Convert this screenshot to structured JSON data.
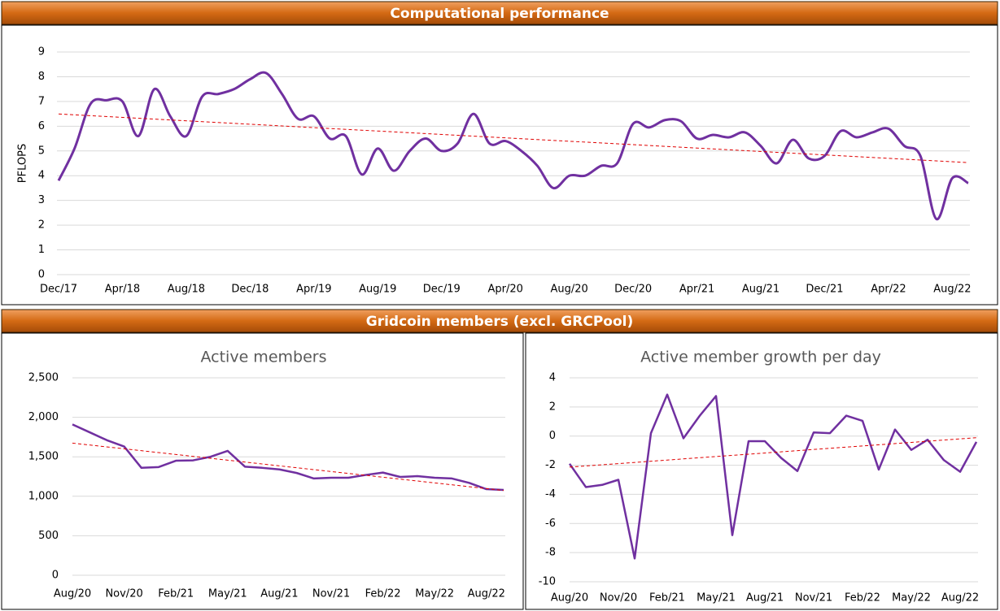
{
  "sections": [
    {
      "title": "Computational performance"
    },
    {
      "title": "Gridcoin members (excl. GRCPool)"
    }
  ],
  "chart_data": [
    {
      "type": "line",
      "smooth": true,
      "ylabel": "PFLOPS",
      "color": "#7030a0",
      "trendline": true,
      "trend_color": "#e00000",
      "grid": true,
      "categories": [
        "Dec/17",
        null,
        null,
        null,
        "Apr/18",
        null,
        null,
        null,
        "Aug/18",
        null,
        null,
        null,
        "Dec/18",
        null,
        null,
        null,
        "Apr/19",
        null,
        null,
        null,
        "Aug/19",
        null,
        null,
        null,
        "Dec/19",
        null,
        null,
        null,
        "Apr/20",
        null,
        null,
        null,
        "Aug/20",
        null,
        null,
        null,
        "Dec/20",
        null,
        null,
        null,
        "Apr/21",
        null,
        null,
        null,
        "Aug/21",
        null,
        null,
        null,
        "Dec/21",
        null,
        null,
        null,
        "Apr/22",
        null,
        null,
        null,
        "Aug/22",
        null
      ],
      "values": [
        3.8,
        5.1,
        6.9,
        7.05,
        7.0,
        5.6,
        7.5,
        6.4,
        5.6,
        7.2,
        7.3,
        7.5,
        7.9,
        8.15,
        7.3,
        6.3,
        6.4,
        5.5,
        5.6,
        4.05,
        5.1,
        4.2,
        5.0,
        5.5,
        5.0,
        5.3,
        6.5,
        5.3,
        5.4,
        5.0,
        4.4,
        3.5,
        4.0,
        4.0,
        4.4,
        4.5,
        6.1,
        5.95,
        6.25,
        6.2,
        5.5,
        5.65,
        5.55,
        5.75,
        5.2,
        4.5,
        5.45,
        4.7,
        4.8,
        5.8,
        5.55,
        5.75,
        5.9,
        5.2,
        4.8,
        2.25,
        3.9,
        3.7
      ],
      "ylim": [
        0,
        9
      ],
      "yticks": [
        0,
        1,
        2,
        3,
        4,
        5,
        6,
        7,
        8,
        9
      ]
    },
    {
      "type": "line",
      "smooth": false,
      "title": "Active members",
      "color": "#7030a0",
      "trendline": true,
      "trend_color": "#e00000",
      "grid": true,
      "categories": [
        "Aug/20",
        null,
        null,
        "Nov/20",
        null,
        null,
        "Feb/21",
        null,
        null,
        "May/21",
        null,
        null,
        "Aug/21",
        null,
        null,
        "Nov/21",
        null,
        null,
        "Feb/22",
        null,
        null,
        "May/22",
        null,
        null,
        "Aug/22",
        null
      ],
      "values": [
        1910,
        1810,
        1710,
        1630,
        1360,
        1370,
        1450,
        1455,
        1500,
        1575,
        1375,
        1360,
        1340,
        1295,
        1225,
        1235,
        1235,
        1270,
        1300,
        1245,
        1255,
        1235,
        1225,
        1170,
        1090,
        1080
      ],
      "ylim": [
        0,
        2500
      ],
      "yticks": [
        0,
        500,
        {
          "value": 1000,
          "label": "1,000"
        },
        {
          "value": 1500,
          "label": "1,500"
        },
        {
          "value": 2000,
          "label": "2,000"
        },
        {
          "value": 2500,
          "label": "2,500"
        }
      ]
    },
    {
      "type": "line",
      "smooth": false,
      "title": "Active member growth per day",
      "color": "#7030a0",
      "trendline": true,
      "trend_color": "#e00000",
      "grid": true,
      "categories": [
        "Aug/20",
        null,
        null,
        "Nov/20",
        null,
        null,
        "Feb/21",
        null,
        null,
        "May/21",
        null,
        null,
        "Aug/21",
        null,
        null,
        "Nov/21",
        null,
        null,
        "Feb/22",
        null,
        null,
        "May/22",
        null,
        null,
        "Aug/22",
        null
      ],
      "values": [
        -1.9,
        -3.5,
        -3.35,
        -3.0,
        -8.4,
        0.2,
        2.85,
        -0.15,
        1.4,
        2.75,
        -6.8,
        -0.35,
        -0.35,
        -1.5,
        -2.4,
        0.25,
        0.2,
        1.4,
        1.05,
        -2.3,
        0.45,
        -0.95,
        -0.25,
        -1.65,
        -2.45,
        -0.4
      ],
      "ylim": [
        -10,
        4
      ],
      "yticks": [
        -10,
        -8,
        -6,
        -4,
        -2,
        0,
        2,
        4
      ]
    }
  ]
}
